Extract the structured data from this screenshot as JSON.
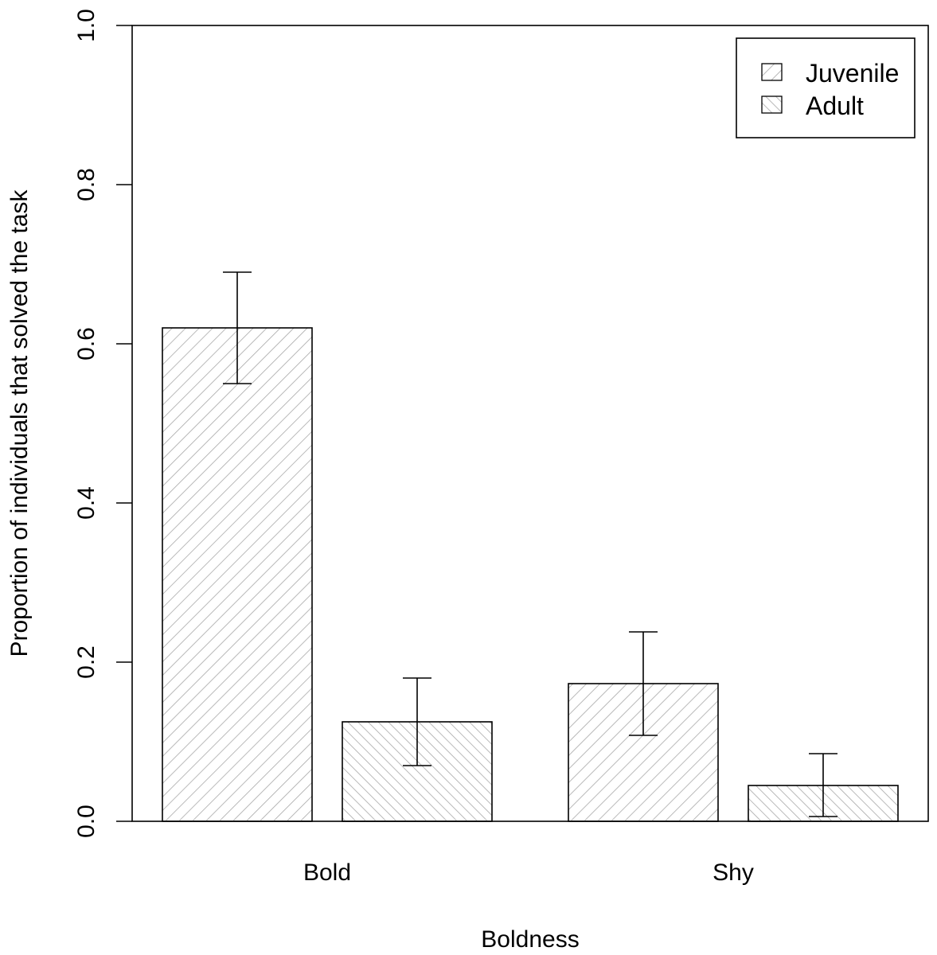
{
  "chart_data": {
    "type": "bar",
    "title": "",
    "xlabel": "Boldness",
    "ylabel": "Proportion of individuals that solved the task",
    "categories": [
      "Bold",
      "Shy"
    ],
    "ylim": [
      0,
      1.0
    ],
    "yticks": [
      "0.0",
      "0.2",
      "0.4",
      "0.6",
      "0.8",
      "1.0"
    ],
    "series": [
      {
        "name": "Juvenile",
        "hatch": "diagonal-forward",
        "values": [
          0.62,
          0.173
        ],
        "error_low": [
          0.55,
          0.108
        ],
        "error_high": [
          0.69,
          0.238
        ]
      },
      {
        "name": "Adult",
        "hatch": "diagonal-backward",
        "values": [
          0.125,
          0.045
        ],
        "error_low": [
          0.07,
          0.006
        ],
        "error_high": [
          0.18,
          0.085
        ]
      }
    ],
    "legend_position": "top-right",
    "grid": false,
    "colors": {
      "hatch": "#a8a8a8",
      "stroke": "#000000"
    }
  }
}
